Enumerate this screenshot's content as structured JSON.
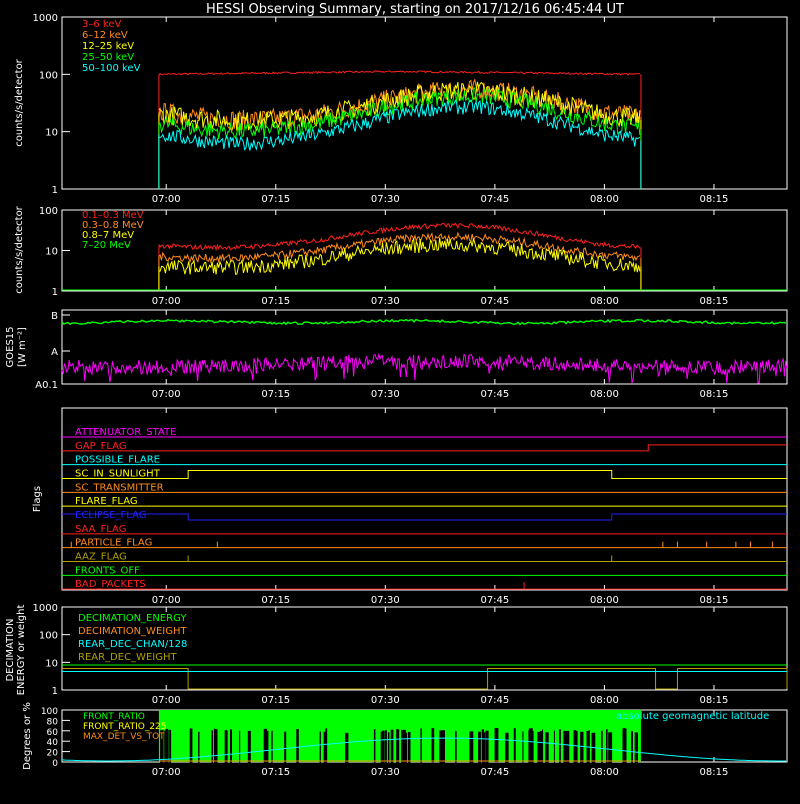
{
  "title": "HESSI Observing Summary, starting on 2017/12/16 06:45:44 UT",
  "time_ticks": [
    "07:00",
    "07:15",
    "07:30",
    "07:45",
    "08:00",
    "08:15"
  ],
  "colors": {
    "red": "#ff2020",
    "orange": "#ff8c1a",
    "yellow": "#ffff00",
    "green": "#00ff00",
    "cyan": "#00ffff",
    "magenta": "#ff00ff",
    "blue": "#2020ff",
    "olive": "#b0a000",
    "white": "#ffffff",
    "black": "#000000"
  },
  "chart_data": [
    {
      "type": "line",
      "id": "panel1",
      "ylabel": "counts/s/detector",
      "yscale": "log",
      "ylim": [
        1,
        1000
      ],
      "ytick_labels": [
        "1",
        "10",
        "100",
        "1000"
      ],
      "legend": [
        "3–6 keV",
        "6–12 keV",
        "12–25 keV",
        "25–50 keV",
        "50–100 keV"
      ],
      "legend_colors": [
        "red",
        "orange",
        "yellow",
        "green",
        "cyan"
      ],
      "series": [
        {
          "name": "3–6 keV",
          "color": "red",
          "start": "06:59",
          "end": "08:05",
          "values": [
            100,
            102,
            104,
            106,
            108,
            110,
            112,
            110,
            108,
            106,
            104,
            102,
            100
          ]
        },
        {
          "name": "6–12 keV",
          "color": "orange",
          "start": "06:59",
          "end": "08:05",
          "values": [
            22,
            18,
            16,
            17,
            20,
            28,
            40,
            52,
            55,
            45,
            32,
            22,
            18
          ]
        },
        {
          "name": "12–25 keV",
          "color": "yellow",
          "start": "06:59",
          "end": "08:05",
          "values": [
            20,
            17,
            15,
            16,
            19,
            26,
            38,
            50,
            52,
            42,
            30,
            20,
            16
          ]
        },
        {
          "name": "25–50 keV",
          "color": "green",
          "start": "06:59",
          "end": "08:05",
          "values": [
            14,
            11,
            10,
            11,
            14,
            20,
            30,
            40,
            42,
            34,
            22,
            14,
            11
          ]
        },
        {
          "name": "50–100 keV",
          "color": "cyan",
          "start": "06:59",
          "end": "08:05",
          "values": [
            9,
            7,
            6,
            7,
            9,
            13,
            20,
            26,
            27,
            21,
            14,
            9,
            7
          ]
        }
      ]
    },
    {
      "type": "line",
      "id": "panel2",
      "ylabel": "counts/s/detector",
      "yscale": "log",
      "ylim": [
        1,
        100
      ],
      "ytick_labels": [
        "1",
        "10",
        "100"
      ],
      "legend": [
        "0.1–0.3 MeV",
        "0.3–0.8 MeV",
        "0.8–7 MeV",
        "7–20 MeV"
      ],
      "legend_colors": [
        "red",
        "orange",
        "yellow",
        "green"
      ],
      "series": [
        {
          "name": "0.1–0.3 MeV",
          "color": "red",
          "start": "06:59",
          "end": "08:05",
          "values": [
            13,
            12,
            12,
            14,
            18,
            26,
            36,
            42,
            40,
            30,
            20,
            14,
            12
          ]
        },
        {
          "name": "0.3–0.8 MeV",
          "color": "orange",
          "start": "06:59",
          "end": "08:05",
          "values": [
            7,
            6.5,
            6.5,
            7.5,
            10,
            14,
            19,
            22,
            21,
            16,
            11,
            8,
            6.5
          ]
        },
        {
          "name": "0.8–7 MeV",
          "color": "yellow",
          "start": "06:59",
          "end": "08:05",
          "values": [
            4,
            3.8,
            3.8,
            4.5,
            6,
            9,
            12,
            14,
            13,
            10,
            7,
            5,
            4
          ]
        },
        {
          "name": "7–20 MeV",
          "color": "green",
          "start": "06:45",
          "end": "08:25",
          "values": [
            1,
            1,
            1,
            1,
            1,
            1,
            1,
            1,
            1,
            1,
            1,
            1,
            1
          ]
        }
      ]
    },
    {
      "type": "line",
      "id": "panel3",
      "ylabel": "GOES15 [W m⁻²]",
      "yscale": "log",
      "ytick_labels": [
        "B",
        "A",
        "A0.1"
      ],
      "series": [
        {
          "name": "GOES long",
          "color": "green",
          "start": "06:45",
          "end": "08:25",
          "values": [
            1e-07
          ]
        },
        {
          "name": "GOES short",
          "color": "magenta",
          "start": "06:45",
          "end": "08:25",
          "values": [
            1.5e-09
          ]
        }
      ]
    },
    {
      "type": "line",
      "id": "panel4",
      "ylabel": "Flags",
      "flags": [
        {
          "label": "ATTENUATOR_STATE",
          "color": "magenta"
        },
        {
          "label": "GAP_FLAG",
          "color": "red"
        },
        {
          "label": "POSSIBLE_FLARE",
          "color": "cyan"
        },
        {
          "label": "SC_IN_SUNLIGHT",
          "color": "yellow"
        },
        {
          "label": "SC_TRANSMITTER",
          "color": "orange"
        },
        {
          "label": "FLARE_FLAG",
          "color": "yellow"
        },
        {
          "label": "ECLIPSE_FLAG",
          "color": "blue"
        },
        {
          "label": "SAA_FLAG",
          "color": "red"
        },
        {
          "label": "PARTICLE_FLAG",
          "color": "orange"
        },
        {
          "label": "AAZ_FLAG",
          "color": "olive"
        },
        {
          "label": "FRONTS_OFF",
          "color": "green"
        },
        {
          "label": "BAD_PACKETS",
          "color": "red"
        }
      ]
    },
    {
      "type": "line",
      "id": "panel5",
      "ylabel": "DECIMATION ENERGY or weight",
      "yscale": "log",
      "ylim": [
        1,
        1000
      ],
      "ytick_labels": [
        "1",
        "10",
        "100",
        "1000"
      ],
      "legend": [
        "DECIMATION_ENERGY",
        "DECIMATION_WEIGHT",
        "REAR_DEC_CHAN/128",
        "REAR_DEC_WEIGHT"
      ],
      "legend_colors": [
        "green",
        "orange",
        "cyan",
        "olive"
      ]
    },
    {
      "type": "line",
      "id": "panel6",
      "ylabel": "Degrees or %",
      "ylim": [
        0,
        100
      ],
      "ytick_labels": [
        "0",
        "20",
        "40",
        "60",
        "80",
        "100"
      ],
      "legend": [
        "FRONT_RATIO",
        "FRONT_RATIO_225",
        "MAX_DET_VS_TOT"
      ],
      "legend_colors": [
        "green",
        "yellow",
        "orange"
      ],
      "right_label": "absolute geomagnetic latitude",
      "right_label_color": "cyan"
    }
  ]
}
